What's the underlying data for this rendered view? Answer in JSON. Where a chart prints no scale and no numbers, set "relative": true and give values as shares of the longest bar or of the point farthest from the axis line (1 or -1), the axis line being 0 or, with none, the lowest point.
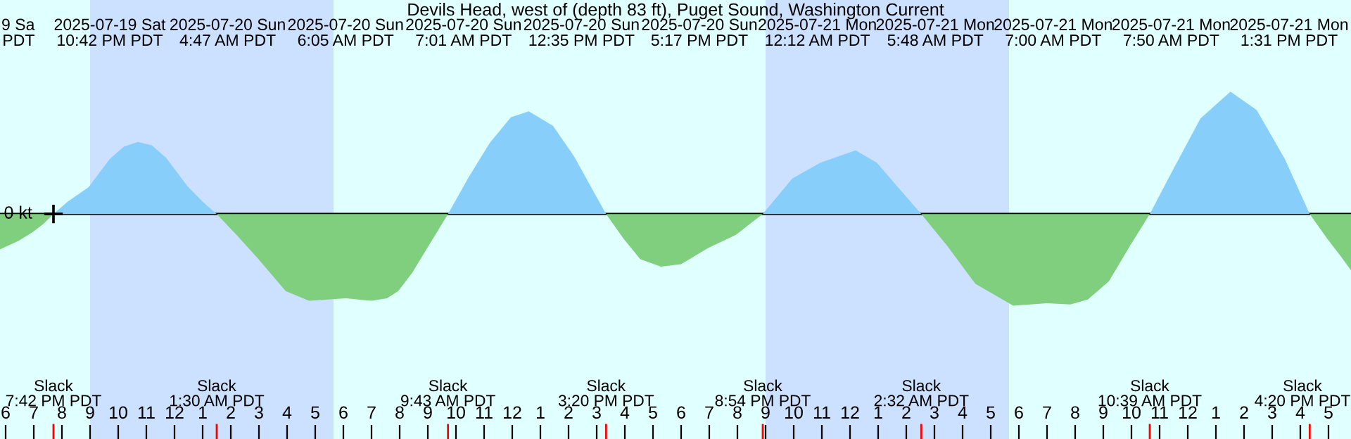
{
  "chart_data": {
    "type": "area",
    "title": "Devils Head, west of (depth 83 ft), Puget Sound, Washington Current",
    "relative": true,
    "tick_labels": "x",
    "xlim": [
      "2025-07-19T17:48",
      "2025-07-21T17:48"
    ],
    "xticks": [
      {
        "value": "2025-07-19T18:00",
        "label": "6"
      },
      {
        "value": "2025-07-19T19:00",
        "label": "7"
      },
      {
        "value": "2025-07-19T20:00",
        "label": "8"
      },
      {
        "value": "2025-07-19T21:00",
        "label": "9"
      },
      {
        "value": "2025-07-19T22:00",
        "label": "10"
      },
      {
        "value": "2025-07-19T23:00",
        "label": "11"
      },
      {
        "value": "2025-07-20T00:00",
        "label": "12"
      },
      {
        "value": "2025-07-20T01:00",
        "label": "1"
      },
      {
        "value": "2025-07-20T02:00",
        "label": "2"
      },
      {
        "value": "2025-07-20T03:00",
        "label": "3"
      },
      {
        "value": "2025-07-20T04:00",
        "label": "4"
      },
      {
        "value": "2025-07-20T05:00",
        "label": "5"
      },
      {
        "value": "2025-07-20T06:00",
        "label": "6"
      },
      {
        "value": "2025-07-20T07:00",
        "label": "7"
      },
      {
        "value": "2025-07-20T08:00",
        "label": "8"
      },
      {
        "value": "2025-07-20T09:00",
        "label": "9"
      },
      {
        "value": "2025-07-20T10:00",
        "label": "10"
      },
      {
        "value": "2025-07-20T11:00",
        "label": "11"
      },
      {
        "value": "2025-07-20T12:00",
        "label": "12"
      },
      {
        "value": "2025-07-20T13:00",
        "label": "1"
      },
      {
        "value": "2025-07-20T14:00",
        "label": "2"
      },
      {
        "value": "2025-07-20T15:00",
        "label": "3"
      },
      {
        "value": "2025-07-20T16:00",
        "label": "4"
      },
      {
        "value": "2025-07-20T17:00",
        "label": "5"
      },
      {
        "value": "2025-07-20T18:00",
        "label": "6"
      },
      {
        "value": "2025-07-20T19:00",
        "label": "7"
      },
      {
        "value": "2025-07-20T20:00",
        "label": "8"
      },
      {
        "value": "2025-07-20T21:00",
        "label": "9"
      },
      {
        "value": "2025-07-20T22:00",
        "label": "10"
      },
      {
        "value": "2025-07-20T23:00",
        "label": "11"
      },
      {
        "value": "2025-07-21T00:00",
        "label": "12"
      },
      {
        "value": "2025-07-21T01:00",
        "label": "1"
      },
      {
        "value": "2025-07-21T02:00",
        "label": "2"
      },
      {
        "value": "2025-07-21T03:00",
        "label": "3"
      },
      {
        "value": "2025-07-21T04:00",
        "label": "4"
      },
      {
        "value": "2025-07-21T05:00",
        "label": "5"
      },
      {
        "value": "2025-07-21T06:00",
        "label": "6"
      },
      {
        "value": "2025-07-21T07:00",
        "label": "7"
      },
      {
        "value": "2025-07-21T08:00",
        "label": "8"
      },
      {
        "value": "2025-07-21T09:00",
        "label": "9"
      },
      {
        "value": "2025-07-21T10:00",
        "label": "10"
      },
      {
        "value": "2025-07-21T11:00",
        "label": "11"
      },
      {
        "value": "2025-07-21T12:00",
        "label": "12"
      },
      {
        "value": "2025-07-21T13:00",
        "label": "1"
      },
      {
        "value": "2025-07-21T14:00",
        "label": "2"
      },
      {
        "value": "2025-07-21T15:00",
        "label": "3"
      },
      {
        "value": "2025-07-21T16:00",
        "label": "4"
      },
      {
        "value": "2025-07-21T17:00",
        "label": "5"
      }
    ],
    "bands": [
      {
        "axis": "x",
        "from": "2025-07-19T21:00",
        "to": "2025-07-20T05:39",
        "color": "#cce0ff"
      },
      {
        "axis": "x",
        "from": "2025-07-20T21:00",
        "to": "2025-07-21T05:39",
        "color": "#cce0ff"
      }
    ],
    "ref_lines": [
      {
        "axis": "y",
        "value": 0,
        "label": "0 kt",
        "color": "#000000"
      }
    ],
    "series": [
      {
        "color": "#87cefa",
        "x": [
          "2025-07-19T19:42",
          "2025-07-19T20:12",
          "2025-07-19T20:57",
          "2025-07-19T21:42",
          "2025-07-19T22:12",
          "2025-07-19T22:42",
          "2025-07-19T23:12",
          "2025-07-19T23:42",
          "2025-07-20T00:27",
          "2025-07-20T01:00",
          "2025-07-20T01:30",
          null,
          "2025-07-20T09:43",
          "2025-07-20T10:27",
          "2025-07-20T11:12",
          "2025-07-20T11:57",
          "2025-07-20T12:35",
          "2025-07-20T13:27",
          "2025-07-20T14:12",
          "2025-07-20T14:51",
          "2025-07-20T15:20",
          null,
          "2025-07-20T20:54",
          "2025-07-20T21:57",
          "2025-07-20T22:57",
          "2025-07-21T00:12",
          "2025-07-21T00:57",
          "2025-07-21T01:42",
          "2025-07-21T02:32",
          null,
          "2025-07-21T10:39",
          "2025-07-21T11:27",
          "2025-07-21T12:27",
          "2025-07-21T13:31",
          "2025-07-21T14:27",
          "2025-07-21T15:27",
          "2025-07-21T16:20"
        ],
        "values": [
          0,
          0.1,
          0.22,
          0.45,
          0.55,
          0.59,
          0.56,
          0.46,
          0.23,
          0.1,
          0,
          null,
          0,
          0.3,
          0.58,
          0.79,
          0.84,
          0.72,
          0.47,
          0.2,
          0,
          null,
          0,
          0.29,
          0.42,
          0.52,
          0.42,
          0.22,
          0,
          null,
          0,
          0.35,
          0.78,
          1.0,
          0.85,
          0.45,
          0
        ]
      },
      {
        "color": "#7fcf7f",
        "x": [
          "2025-07-19T17:48",
          "2025-07-19T18:27",
          "2025-07-19T18:57",
          "2025-07-19T19:21",
          "2025-07-19T19:42",
          null,
          "2025-07-20T01:30",
          "2025-07-20T02:12",
          "2025-07-20T02:57",
          "2025-07-20T03:57",
          "2025-07-20T04:47",
          "2025-07-20T05:27",
          "2025-07-20T06:05",
          "2025-07-20T07:01",
          "2025-07-20T07:33",
          "2025-07-20T07:57",
          "2025-07-20T08:27",
          "2025-07-20T08:57",
          "2025-07-20T09:43",
          null,
          "2025-07-20T15:20",
          "2025-07-20T15:57",
          "2025-07-20T16:33",
          "2025-07-20T17:17",
          "2025-07-20T18:00",
          "2025-07-20T18:57",
          "2025-07-20T19:57",
          "2025-07-20T20:27",
          "2025-07-20T20:54",
          null,
          "2025-07-21T02:32",
          "2025-07-21T03:27",
          "2025-07-21T04:27",
          "2025-07-21T05:48",
          "2025-07-21T07:00",
          "2025-07-21T07:50",
          "2025-07-21T08:27",
          "2025-07-21T09:12",
          "2025-07-21T09:57",
          "2025-07-21T10:39",
          null,
          "2025-07-21T16:20",
          "2025-07-21T16:57",
          "2025-07-21T17:27",
          "2025-07-21T17:48"
        ],
        "values": [
          -0.29,
          -0.22,
          -0.15,
          -0.08,
          0,
          null,
          0,
          -0.17,
          -0.36,
          -0.63,
          -0.71,
          -0.7,
          -0.69,
          -0.71,
          -0.69,
          -0.63,
          -0.48,
          -0.29,
          0,
          null,
          0,
          -0.2,
          -0.37,
          -0.43,
          -0.41,
          -0.28,
          -0.17,
          -0.08,
          0,
          null,
          0,
          -0.26,
          -0.57,
          -0.75,
          -0.73,
          -0.74,
          -0.7,
          -0.55,
          -0.26,
          0,
          null,
          0,
          -0.2,
          -0.35,
          -0.46
        ]
      },
      {
        "type": "scatter",
        "color": "#000000",
        "marker": "cross",
        "x": [
          "2025-07-19T19:42"
        ],
        "values": [
          0
        ]
      }
    ],
    "annotations": [
      "9 Sa\nPDT",
      "2025-07-19 Sat\n10:42 PM PDT",
      "2025-07-20 Sun\n4:47 AM PDT",
      "2025-07-20 Sun\n6:05 AM PDT",
      "2025-07-20 Sun\n7:01 AM PDT",
      "2025-07-20 Sun\n12:35 PM PDT",
      "2025-07-20 Sun\n5:17 PM PDT",
      "2025-07-21 Mon\n12:12 AM PDT",
      "2025-07-21 Mon\n5:48 AM PDT",
      "2025-07-21 Mon\n7:00 AM PDT",
      "2025-07-21 Mon\n7:50 AM PDT",
      "2025-07-21 Mon\n1:31 PM PDT",
      {
        "text": "Slack\n7:42 PM PDT",
        "x": "2025-07-19T19:42"
      },
      {
        "text": "Slack\n1:30 AM PDT",
        "x": "2025-07-20T01:30"
      },
      {
        "text": "Slack\n9:43 AM PDT",
        "x": "2025-07-20T09:43"
      },
      {
        "text": "Slack\n3:20 PM PDT",
        "x": "2025-07-20T15:20"
      },
      {
        "text": "Slack\n8:54 PM PDT",
        "x": "2025-07-20T20:54"
      },
      {
        "text": "Slack\n2:32 AM PDT",
        "x": "2025-07-21T02:32"
      },
      {
        "text": "Slack\n10:39 AM PDT",
        "x": "2025-07-21T10:39"
      },
      {
        "text": "Slack\n4:20 PM PDT",
        "x": "2025-07-21T16:20"
      }
    ]
  }
}
